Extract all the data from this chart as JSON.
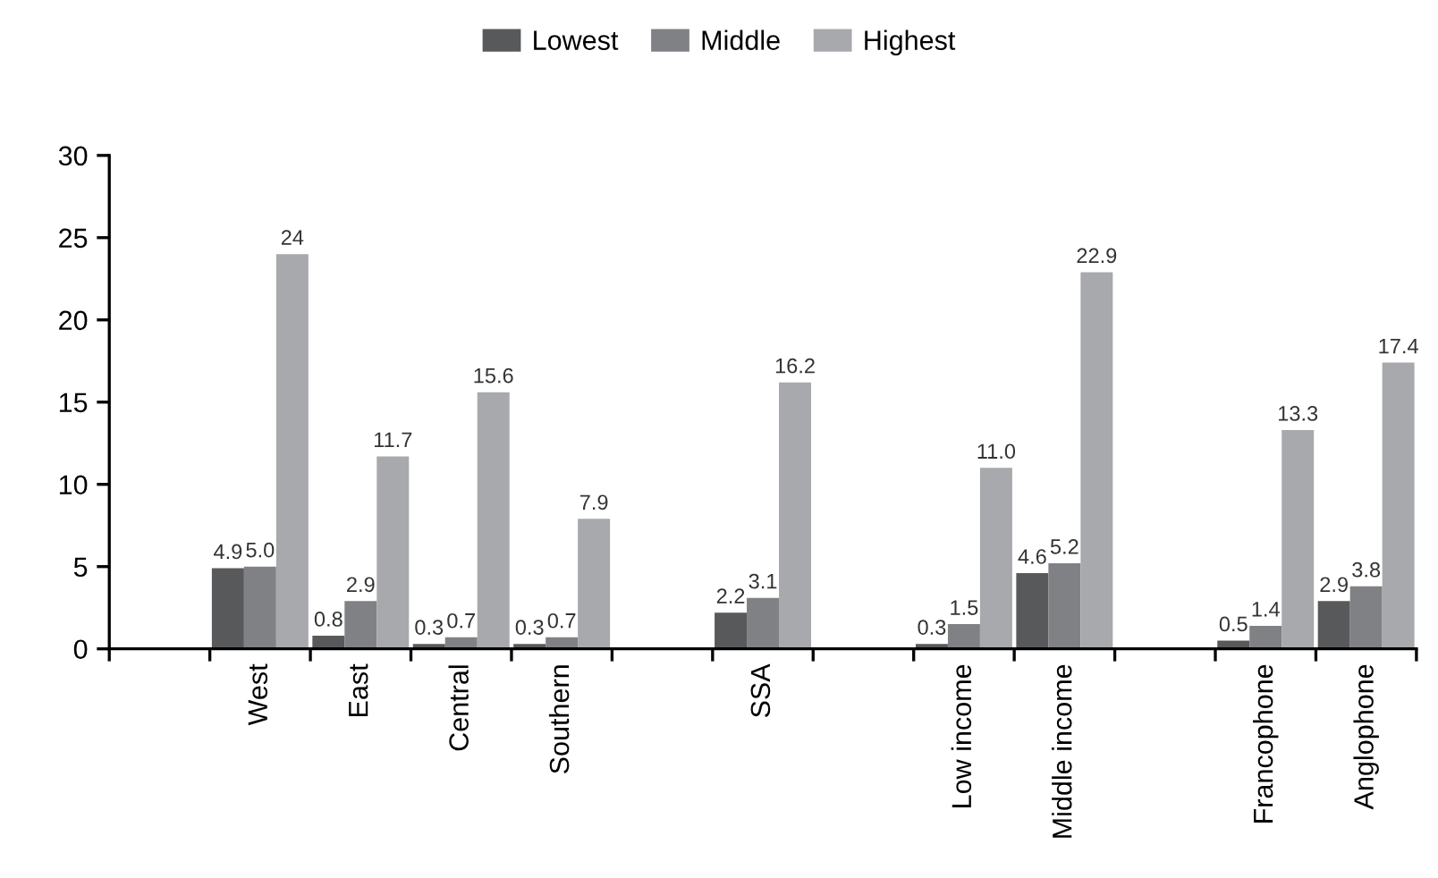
{
  "chart_data": {
    "type": "bar",
    "categories": [
      null,
      "West",
      "East",
      "Central",
      "Southern",
      null,
      "SSA",
      null,
      "Low income",
      "Middle income",
      null,
      "Francophone",
      "Anglophone"
    ],
    "series": [
      {
        "name": "Lowest",
        "color": "#58595b",
        "values": [
          null,
          4.9,
          0.8,
          0.3,
          0.3,
          null,
          2.2,
          null,
          0.3,
          4.6,
          null,
          0.5,
          2.9
        ],
        "value_labels": [
          null,
          "4.9",
          "0.8",
          "0.3",
          "0.3",
          null,
          "2.2",
          null,
          "0.3",
          "4.6",
          null,
          "0.5",
          "2.9"
        ]
      },
      {
        "name": "Middle",
        "color": "#808184",
        "values": [
          null,
          5.0,
          2.9,
          0.7,
          0.7,
          null,
          3.1,
          null,
          1.5,
          5.2,
          null,
          1.4,
          3.8
        ],
        "value_labels": [
          null,
          "5.0",
          "2.9",
          "0.7",
          "0.7",
          null,
          "3.1",
          null,
          "1.5",
          "5.2",
          null,
          "1.4",
          "3.8"
        ]
      },
      {
        "name": "Highest",
        "color": "#a7a9ac",
        "values": [
          null,
          24,
          11.7,
          15.6,
          7.9,
          null,
          16.2,
          null,
          11.0,
          22.9,
          null,
          13.3,
          17.4
        ],
        "value_labels": [
          null,
          "24",
          "11.7",
          "15.6",
          "7.9",
          null,
          "16.2",
          null,
          "11.0",
          "22.9",
          null,
          "13.3",
          "17.4"
        ]
      }
    ],
    "ylim": [
      0,
      30
    ],
    "yticks": [
      0,
      5,
      10,
      15,
      20,
      25,
      30
    ],
    "grid": false,
    "legend": "top"
  }
}
